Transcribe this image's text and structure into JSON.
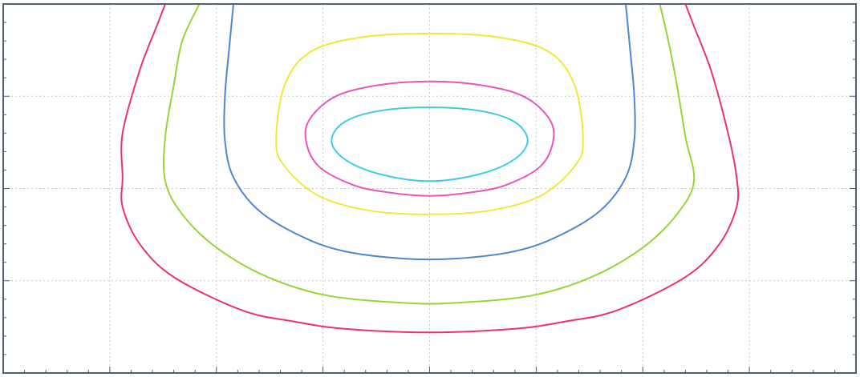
{
  "chart_data": {
    "type": "contour",
    "title": "",
    "xlabel": "",
    "ylabel": "",
    "grid": true,
    "x_major_ticks": 8,
    "y_major_ticks": 4,
    "minor_per_major": 5,
    "colors": {
      "frame": "#4f5f78",
      "grid": "#c9c9c9",
      "background": "#ffffff"
    },
    "contours": [
      {
        "color": "#e8346a",
        "closed": false,
        "points": [
          [
            0.19,
            0.0
          ],
          [
            0.18,
            0.06
          ],
          [
            0.16,
            0.18
          ],
          [
            0.14,
            0.35
          ],
          [
            0.14,
            0.47
          ],
          [
            0.14,
            0.55
          ],
          [
            0.16,
            0.65
          ],
          [
            0.2,
            0.74
          ],
          [
            0.28,
            0.83
          ],
          [
            0.34,
            0.86
          ],
          [
            0.4,
            0.88
          ],
          [
            0.5,
            0.89
          ],
          [
            0.6,
            0.88
          ],
          [
            0.66,
            0.86
          ],
          [
            0.72,
            0.83
          ],
          [
            0.8,
            0.74
          ],
          [
            0.84,
            0.65
          ],
          [
            0.86,
            0.55
          ],
          [
            0.86,
            0.47
          ],
          [
            0.85,
            0.35
          ],
          [
            0.83,
            0.18
          ],
          [
            0.81,
            0.06
          ],
          [
            0.8,
            0.0
          ]
        ]
      },
      {
        "color": "#9bd23a",
        "closed": false,
        "points": [
          [
            0.23,
            0.0
          ],
          [
            0.21,
            0.1
          ],
          [
            0.2,
            0.22
          ],
          [
            0.19,
            0.36
          ],
          [
            0.19,
            0.48
          ],
          [
            0.21,
            0.57
          ],
          [
            0.25,
            0.66
          ],
          [
            0.31,
            0.74
          ],
          [
            0.38,
            0.79
          ],
          [
            0.47,
            0.81
          ],
          [
            0.53,
            0.81
          ],
          [
            0.62,
            0.79
          ],
          [
            0.69,
            0.74
          ],
          [
            0.75,
            0.66
          ],
          [
            0.79,
            0.57
          ],
          [
            0.81,
            0.48
          ],
          [
            0.8,
            0.36
          ],
          [
            0.79,
            0.22
          ],
          [
            0.78,
            0.1
          ],
          [
            0.77,
            0.0
          ]
        ]
      },
      {
        "color": "#4f86d4",
        "closed": false,
        "points": [
          [
            0.27,
            0.0
          ],
          [
            0.265,
            0.12
          ],
          [
            0.26,
            0.25
          ],
          [
            0.26,
            0.37
          ],
          [
            0.27,
            0.47
          ],
          [
            0.3,
            0.56
          ],
          [
            0.35,
            0.63
          ],
          [
            0.4,
            0.67
          ],
          [
            0.47,
            0.69
          ],
          [
            0.53,
            0.69
          ],
          [
            0.6,
            0.67
          ],
          [
            0.65,
            0.63
          ],
          [
            0.7,
            0.56
          ],
          [
            0.73,
            0.47
          ],
          [
            0.74,
            0.37
          ],
          [
            0.74,
            0.25
          ],
          [
            0.735,
            0.12
          ],
          [
            0.73,
            0.0
          ]
        ]
      },
      {
        "color": "#f2e83a",
        "closed": true,
        "points": [
          [
            0.5,
            0.08
          ],
          [
            0.58,
            0.09
          ],
          [
            0.64,
            0.13
          ],
          [
            0.67,
            0.22
          ],
          [
            0.68,
            0.37
          ],
          [
            0.67,
            0.44
          ],
          [
            0.63,
            0.52
          ],
          [
            0.57,
            0.56
          ],
          [
            0.5,
            0.57
          ],
          [
            0.43,
            0.56
          ],
          [
            0.37,
            0.52
          ],
          [
            0.33,
            0.44
          ],
          [
            0.32,
            0.37
          ],
          [
            0.33,
            0.22
          ],
          [
            0.36,
            0.13
          ],
          [
            0.42,
            0.09
          ]
        ]
      },
      {
        "color": "#e25ab8",
        "closed": true,
        "points": [
          [
            0.5,
            0.21
          ],
          [
            0.56,
            0.22
          ],
          [
            0.61,
            0.25
          ],
          [
            0.64,
            0.31
          ],
          [
            0.645,
            0.37
          ],
          [
            0.63,
            0.44
          ],
          [
            0.59,
            0.49
          ],
          [
            0.55,
            0.51
          ],
          [
            0.5,
            0.52
          ],
          [
            0.45,
            0.51
          ],
          [
            0.41,
            0.49
          ],
          [
            0.37,
            0.44
          ],
          [
            0.355,
            0.37
          ],
          [
            0.36,
            0.31
          ],
          [
            0.39,
            0.25
          ],
          [
            0.44,
            0.22
          ]
        ]
      },
      {
        "color": "#3ccde2",
        "closed": true,
        "points": [
          [
            0.5,
            0.28
          ],
          [
            0.56,
            0.29
          ],
          [
            0.6,
            0.32
          ],
          [
            0.615,
            0.37
          ],
          [
            0.6,
            0.42
          ],
          [
            0.56,
            0.46
          ],
          [
            0.5,
            0.48
          ],
          [
            0.44,
            0.46
          ],
          [
            0.4,
            0.42
          ],
          [
            0.385,
            0.37
          ],
          [
            0.4,
            0.32
          ],
          [
            0.44,
            0.29
          ]
        ]
      }
    ]
  }
}
